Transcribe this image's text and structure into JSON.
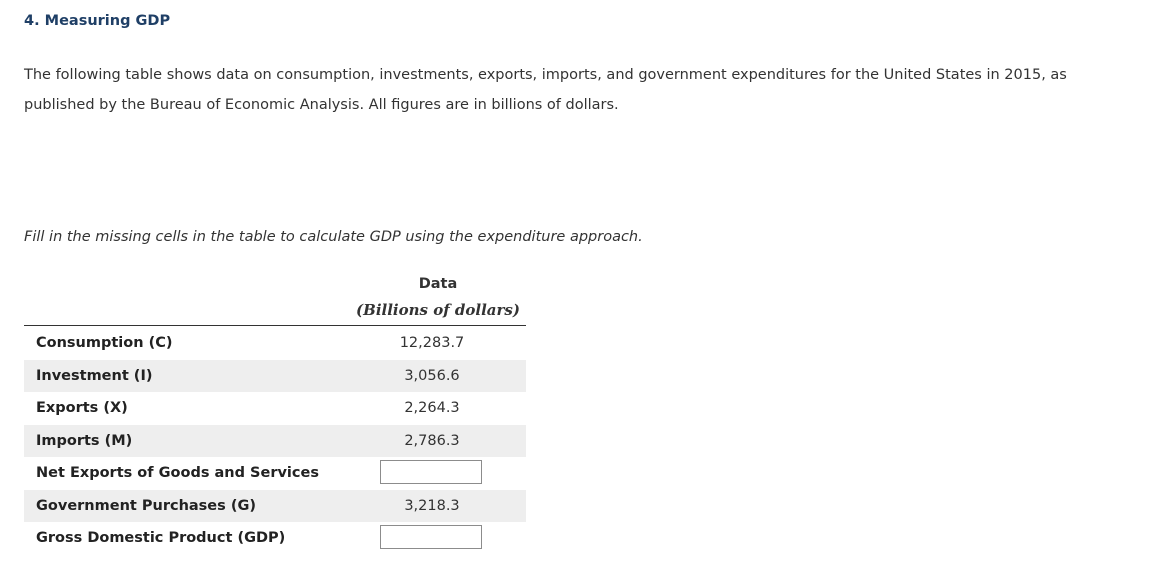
{
  "question": {
    "heading": "4. Measuring GDP",
    "intro": "The following table shows data on consumption, investments, exports, imports, and government expenditures for the United States in 2015, as published by the Bureau of Economic Analysis. All figures are in billions of dollars.",
    "instruction": "Fill in the missing cells in the table to calculate GDP using the expenditure approach."
  },
  "table": {
    "column_title": "Data",
    "column_subtitle": "(Billions of dollars)",
    "rows": [
      {
        "label": "Consumption (C)",
        "value": "12,283.7"
      },
      {
        "label": "Investment (I)",
        "value": "3,056.6"
      },
      {
        "label": "Exports (X)",
        "value": "2,264.3"
      },
      {
        "label": "Imports (M)",
        "value": "2,786.3"
      },
      {
        "label": "Net Exports of Goods and Services",
        "input_value": ""
      },
      {
        "label": "Government Purchases (G)",
        "value": "3,218.3"
      },
      {
        "label": "Gross Domestic Product (GDP)",
        "input_value": ""
      }
    ]
  },
  "colors": {
    "heading": "#1f3f66",
    "row_shade": "#eeeeee",
    "text": "#333333"
  }
}
